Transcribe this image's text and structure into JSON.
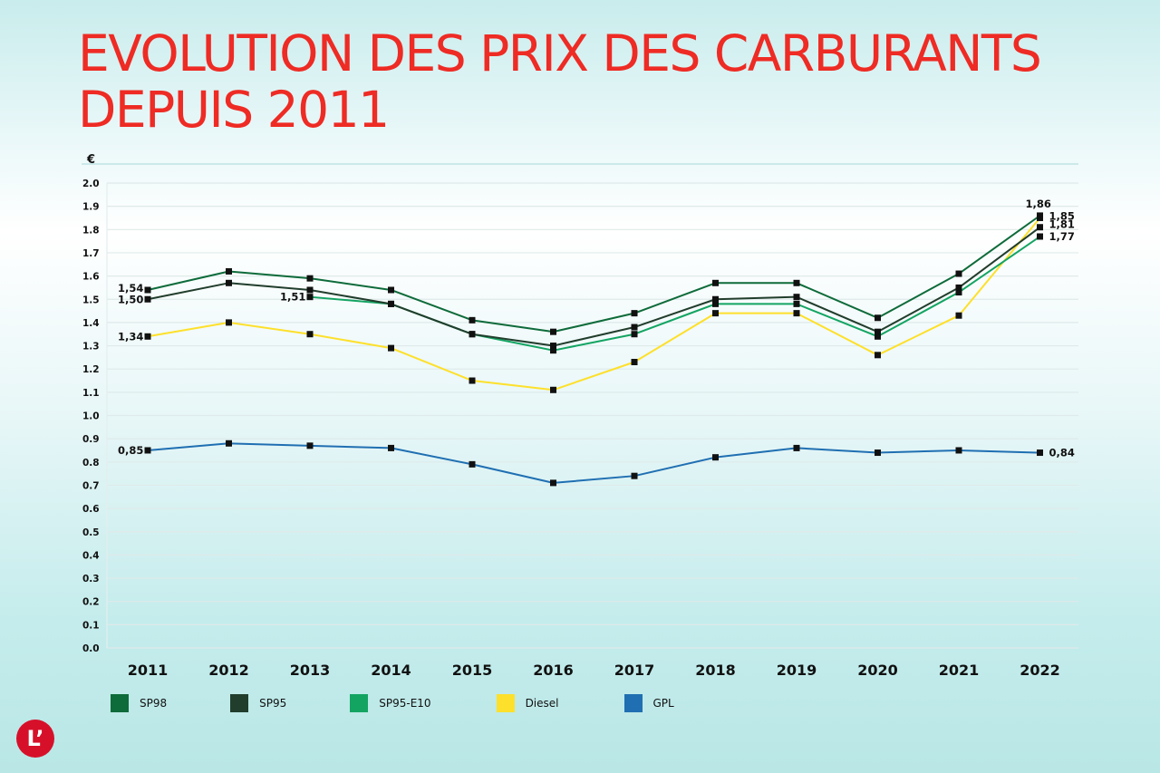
{
  "title": {
    "line1": "EVOLUTION DES PRIX DES CARBURANTS",
    "line2": "DEPUIS 2011"
  },
  "logo": {
    "text": "L’",
    "color": "#d7102a"
  },
  "legend": [
    {
      "name": "SP98",
      "color": "#0e6b3a"
    },
    {
      "name": "SP95",
      "color": "#213d2c"
    },
    {
      "name": "SP95-E10",
      "color": "#13a462"
    },
    {
      "name": "Diesel",
      "color": "#fde02b"
    },
    {
      "name": "GPL",
      "color": "#1f6fb2"
    }
  ],
  "chart_data": {
    "type": "line",
    "title": "EVOLUTION DES PRIX DES CARBURANTS DEPUIS 2011",
    "xlabel": "",
    "ylabel": "€",
    "ylim": [
      0.0,
      2.0
    ],
    "yticks": [
      "0.0",
      "0.1",
      "0.2",
      "0.3",
      "0.4",
      "0.5",
      "0.6",
      "0.7",
      "0.8",
      "0.9",
      "1.0",
      "1.1",
      "1.2",
      "1.3",
      "1.4",
      "1.5",
      "1.6",
      "1.7",
      "1.8",
      "1.9",
      "2.0"
    ],
    "grid": true,
    "legend_position": "bottom",
    "categories": [
      "2011",
      "2012",
      "2013",
      "2014",
      "2015",
      "2016",
      "2017",
      "2018",
      "2019",
      "2020",
      "2021",
      "2022"
    ],
    "series": [
      {
        "name": "SP98",
        "color": "#0e6b3a",
        "values": [
          1.54,
          1.62,
          1.59,
          1.54,
          1.41,
          1.36,
          1.44,
          1.57,
          1.57,
          1.42,
          1.61,
          1.86
        ]
      },
      {
        "name": "SP95",
        "color": "#213d2c",
        "values": [
          1.5,
          1.57,
          1.54,
          1.48,
          1.35,
          1.3,
          1.38,
          1.5,
          1.51,
          1.36,
          1.55,
          1.81
        ]
      },
      {
        "name": "SP95-E10",
        "color": "#13a462",
        "values": [
          null,
          null,
          1.51,
          1.48,
          1.35,
          1.28,
          1.35,
          1.48,
          1.48,
          1.34,
          1.53,
          1.77
        ]
      },
      {
        "name": "Diesel",
        "color": "#fde02b",
        "values": [
          1.34,
          1.4,
          1.35,
          1.29,
          1.15,
          1.11,
          1.23,
          1.44,
          1.44,
          1.26,
          1.43,
          1.85
        ]
      },
      {
        "name": "GPL",
        "color": "#1f6fb2",
        "values": [
          0.85,
          0.88,
          0.87,
          0.86,
          0.79,
          0.71,
          0.74,
          0.82,
          0.86,
          0.84,
          0.85,
          0.84
        ]
      }
    ],
    "annotations": [
      {
        "series": "SP98",
        "x": "2011",
        "text": "1,54"
      },
      {
        "series": "SP95",
        "x": "2011",
        "text": "1,50"
      },
      {
        "series": "Diesel",
        "x": "2011",
        "text": "1,34"
      },
      {
        "series": "GPL",
        "x": "2011",
        "text": "0,85"
      },
      {
        "series": "SP95-E10",
        "x": "2013",
        "text": "1,51"
      },
      {
        "series": "SP98",
        "x": "2022",
        "text": "1,86"
      },
      {
        "series": "Diesel",
        "x": "2022",
        "text": "1,85"
      },
      {
        "series": "SP95",
        "x": "2022",
        "text": "1,81"
      },
      {
        "series": "SP95-E10",
        "x": "2022",
        "text": "1,77"
      },
      {
        "series": "GPL",
        "x": "2022",
        "text": "0,84"
      }
    ]
  }
}
